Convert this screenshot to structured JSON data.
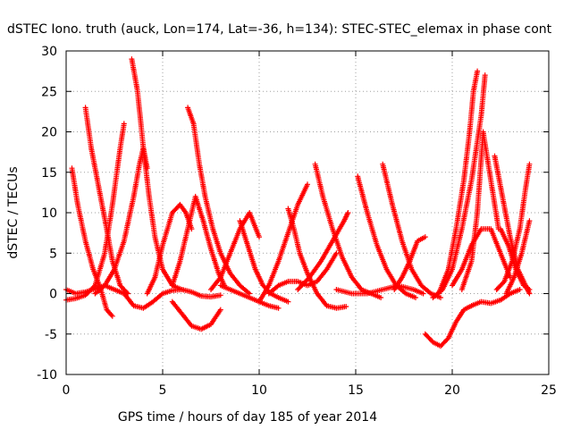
{
  "chart_data": {
    "type": "scatter",
    "title": "dSTEC Iono. truth (auck, Lon=174, Lat=-36, h=134): STEC-STEC_elemax in phase cont",
    "xlabel": "GPS time / hours of day 185 of year 2014",
    "ylabel": "dSTEC  / TECUs",
    "xlim": [
      0,
      25
    ],
    "ylim": [
      -10,
      30
    ],
    "xticks": [
      0,
      5,
      10,
      15,
      20,
      25
    ],
    "yticks": [
      -10,
      -5,
      0,
      5,
      10,
      15,
      20,
      25,
      30
    ],
    "grid": true,
    "marker": "plus",
    "color": "#ff0000",
    "series": [
      {
        "x": [
          0.0,
          0.5,
          1.0,
          1.5,
          2.0,
          2.5,
          3.0,
          3.5,
          4.0,
          4.5,
          5.0,
          5.5,
          6.0,
          6.5,
          7.0,
          7.5,
          8.0
        ],
        "y": [
          0.5,
          0.0,
          0.2,
          0.6,
          1.0,
          0.5,
          0.0,
          -1.5,
          -1.8,
          -1.0,
          0.0,
          0.4,
          0.5,
          0.2,
          -0.3,
          -0.4,
          -0.2
        ]
      },
      {
        "x": [
          0.3,
          0.6,
          1.0,
          1.4,
          1.8,
          2.1,
          2.4
        ],
        "y": [
          15.5,
          11.0,
          6.5,
          3.0,
          0.5,
          -2.0,
          -2.8
        ]
      },
      {
        "x": [
          1.0,
          1.3,
          1.7,
          2.1,
          2.4,
          2.8,
          3.2
        ],
        "y": [
          23.0,
          18.0,
          13.0,
          8.0,
          4.0,
          1.0,
          0.0
        ]
      },
      {
        "x": [
          0.0,
          0.5,
          1.0,
          1.5,
          2.0,
          2.4,
          2.8,
          3.0
        ],
        "y": [
          -0.8,
          -0.6,
          -0.2,
          1.0,
          5.0,
          11.0,
          18.0,
          21.0
        ]
      },
      {
        "x": [
          3.4,
          3.7,
          4.0,
          4.3,
          4.6,
          5.0,
          5.5,
          6.0
        ],
        "y": [
          29.0,
          25.0,
          18.0,
          12.0,
          7.0,
          3.0,
          1.0,
          0.5
        ]
      },
      {
        "x": [
          1.5,
          2.0,
          2.5,
          3.0,
          3.5,
          3.8,
          4.0,
          4.2
        ],
        "y": [
          0.0,
          1.0,
          3.0,
          6.5,
          12.0,
          16.0,
          18.0,
          15.5
        ]
      },
      {
        "x": [
          4.2,
          4.6,
          5.0,
          5.5,
          5.9,
          6.2,
          6.5
        ],
        "y": [
          0.0,
          2.0,
          6.0,
          10.0,
          11.0,
          10.0,
          8.0
        ]
      },
      {
        "x": [
          5.5,
          5.9,
          6.3,
          6.7,
          7.1,
          7.5,
          7.9,
          8.2
        ],
        "y": [
          1.0,
          4.0,
          8.0,
          12.0,
          9.0,
          5.5,
          2.5,
          1.0
        ]
      },
      {
        "x": [
          6.3,
          6.6,
          6.9,
          7.2,
          7.6,
          8.0,
          8.5,
          9.0,
          9.5
        ],
        "y": [
          23.0,
          21.0,
          16.0,
          12.0,
          8.0,
          5.0,
          2.5,
          1.0,
          0.0
        ]
      },
      {
        "x": [
          5.5,
          6.0,
          6.5,
          7.0,
          7.5,
          8.0
        ],
        "y": [
          -1.0,
          -2.5,
          -4.0,
          -4.4,
          -3.8,
          -2.0
        ]
      },
      {
        "x": [
          7.5,
          8.0,
          8.5,
          9.0,
          9.5,
          10.0
        ],
        "y": [
          0.5,
          2.0,
          5.0,
          8.0,
          10.0,
          7.0
        ]
      },
      {
        "x": [
          8.0,
          8.5,
          9.0,
          9.5,
          10.0,
          10.5,
          11.0
        ],
        "y": [
          1.0,
          0.5,
          0.0,
          -0.5,
          -1.0,
          -1.5,
          -1.8
        ]
      },
      {
        "x": [
          9.0,
          9.4,
          9.8,
          10.2,
          10.6,
          11.0,
          11.5
        ],
        "y": [
          9.0,
          6.0,
          3.0,
          1.0,
          0.0,
          -0.5,
          -1.0
        ]
      },
      {
        "x": [
          10.0,
          10.5,
          11.0,
          11.5,
          12.0,
          12.5
        ],
        "y": [
          -1.0,
          1.0,
          4.0,
          7.5,
          11.0,
          13.5
        ]
      },
      {
        "x": [
          11.5,
          11.8,
          12.1,
          12.5,
          13.0,
          13.5,
          14.0,
          14.5
        ],
        "y": [
          10.5,
          8.0,
          5.0,
          2.5,
          0.0,
          -1.5,
          -1.8,
          -1.6
        ]
      },
      {
        "x": [
          10.5,
          11.0,
          11.5,
          12.0,
          12.5,
          13.0,
          13.5,
          14.0
        ],
        "y": [
          0.0,
          1.0,
          1.5,
          1.5,
          1.0,
          1.5,
          3.0,
          5.0
        ]
      },
      {
        "x": [
          12.9,
          13.3,
          13.8,
          14.3,
          14.8,
          15.3,
          15.8,
          16.3
        ],
        "y": [
          16.0,
          12.0,
          8.0,
          4.5,
          2.0,
          0.5,
          0.0,
          -0.5
        ]
      },
      {
        "x": [
          12.0,
          12.6,
          13.2,
          13.8,
          14.4,
          14.6
        ],
        "y": [
          0.5,
          2.0,
          4.0,
          6.5,
          9.0,
          10.0
        ]
      },
      {
        "x": [
          15.1,
          15.6,
          16.1,
          16.6,
          17.1,
          17.6,
          18.1
        ],
        "y": [
          14.5,
          10.0,
          6.0,
          3.0,
          1.0,
          0.0,
          -0.5
        ]
      },
      {
        "x": [
          16.4,
          16.9,
          17.4,
          17.9,
          18.4,
          18.9,
          19.4
        ],
        "y": [
          16.0,
          11.0,
          6.5,
          3.0,
          1.0,
          0.0,
          -0.5
        ]
      },
      {
        "x": [
          14.0,
          14.8,
          15.6,
          16.4,
          17.2,
          18.0,
          18.5
        ],
        "y": [
          0.5,
          0.0,
          0.0,
          0.5,
          1.0,
          0.5,
          0.0
        ]
      },
      {
        "x": [
          17.0,
          17.4,
          17.8,
          18.2,
          18.6
        ],
        "y": [
          0.5,
          2.0,
          4.0,
          6.5,
          7.0
        ]
      },
      {
        "x": [
          18.6,
          19.0,
          19.4,
          19.8,
          20.2,
          20.6,
          21.0
        ],
        "y": [
          -5.0,
          -6.0,
          -6.5,
          -5.5,
          -3.5,
          -2.0,
          -1.5
        ]
      },
      {
        "x": [
          21.0,
          21.5,
          22.0,
          22.5,
          23.0,
          23.5
        ],
        "y": [
          -1.5,
          -1.0,
          -1.2,
          -0.8,
          0.0,
          0.5
        ]
      },
      {
        "x": [
          19.3,
          19.8,
          20.2,
          20.6,
          20.9,
          21.1,
          21.3
        ],
        "y": [
          0.0,
          3.0,
          8.0,
          14.0,
          20.0,
          25.0,
          27.5
        ]
      },
      {
        "x": [
          19.0,
          19.5,
          20.0,
          20.5,
          21.0,
          21.5,
          21.7
        ],
        "y": [
          -0.5,
          0.5,
          3.0,
          8.0,
          14.0,
          22.0,
          27.0
        ]
      },
      {
        "x": [
          20.5,
          21.0,
          21.3,
          21.6,
          22.0,
          22.4
        ],
        "y": [
          0.5,
          4.0,
          10.0,
          20.0,
          14.0,
          8.0
        ]
      },
      {
        "x": [
          20.0,
          20.5,
          21.0,
          21.5,
          22.0,
          22.5,
          23.0
        ],
        "y": [
          1.0,
          3.0,
          6.0,
          8.0,
          8.0,
          5.0,
          2.0
        ]
      },
      {
        "x": [
          22.2,
          22.6,
          23.0,
          23.4,
          23.8,
          24.0
        ],
        "y": [
          17.0,
          12.0,
          7.0,
          3.0,
          1.0,
          0.0
        ]
      },
      {
        "x": [
          22.3,
          22.7,
          23.1,
          23.5,
          23.8,
          24.0
        ],
        "y": [
          0.5,
          1.5,
          4.0,
          8.0,
          13.0,
          16.0
        ]
      },
      {
        "x": [
          22.5,
          22.9,
          23.3,
          23.7,
          24.0
        ],
        "y": [
          8.0,
          6.0,
          3.0,
          1.0,
          0.5
        ]
      },
      {
        "x": [
          22.8,
          23.2,
          23.6,
          24.0
        ],
        "y": [
          0.0,
          2.0,
          5.0,
          9.0
        ]
      }
    ]
  }
}
